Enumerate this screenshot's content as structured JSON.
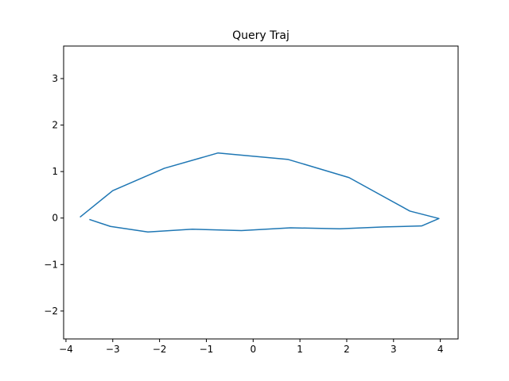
{
  "chart_data": {
    "type": "line",
    "title": "Query Traj",
    "xlabel": "",
    "ylabel": "",
    "xlim": [
      -4.05,
      4.38
    ],
    "ylim": [
      -2.6,
      3.7
    ],
    "xticks": [
      -4,
      -3,
      -2,
      -1,
      0,
      1,
      2,
      3,
      4
    ],
    "yticks": [
      -2,
      -1,
      0,
      1,
      2,
      3
    ],
    "xtick_labels": [
      "−4",
      "−3",
      "−2",
      "−1",
      "0",
      "1",
      "2",
      "3",
      "4"
    ],
    "ytick_labels": [
      "−2",
      "−1",
      "0",
      "1",
      "2",
      "3"
    ],
    "grid": false,
    "series": [
      {
        "color": "#1f77b4",
        "x": [
          -3.5,
          -3.05,
          -2.25,
          -1.3,
          -0.25,
          0.8,
          1.85,
          2.8,
          3.6,
          3.97,
          3.35,
          2.05,
          0.75,
          -0.75,
          -1.9,
          -3.0,
          -3.7
        ],
        "y": [
          -0.03,
          -0.18,
          -0.3,
          -0.24,
          -0.27,
          -0.21,
          -0.23,
          -0.19,
          -0.17,
          -0.01,
          0.15,
          0.87,
          1.26,
          1.4,
          1.07,
          0.59,
          0.02
        ]
      }
    ]
  }
}
